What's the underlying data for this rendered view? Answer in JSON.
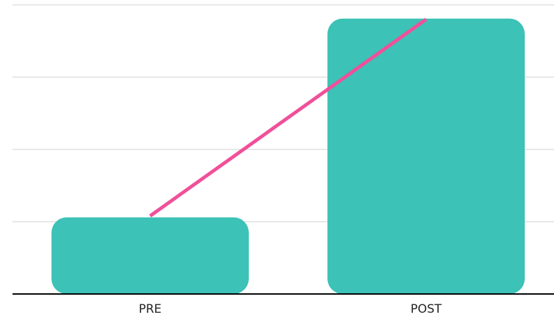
{
  "chart_data": {
    "type": "bar",
    "categories": [
      "PRE",
      "POST"
    ],
    "series": [
      {
        "type": "bar",
        "color": "#3cc2b6",
        "values": [
          1.06,
          3.81
        ]
      },
      {
        "type": "line",
        "color": "#f0509a",
        "values": [
          1.08,
          3.8
        ]
      }
    ],
    "ylim": [
      0,
      4
    ],
    "yticks": [
      0,
      1,
      2,
      3,
      4
    ],
    "grid": true
  }
}
